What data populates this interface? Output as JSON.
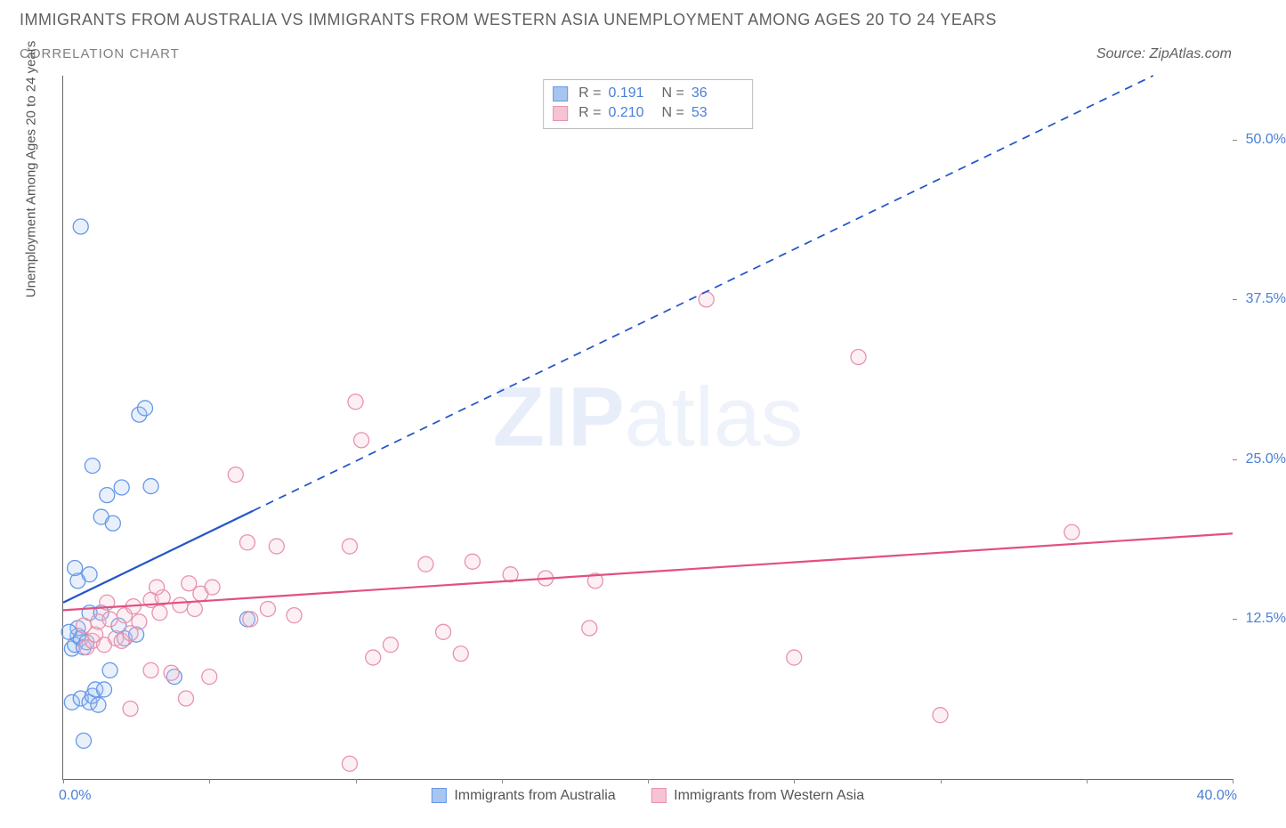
{
  "title": "IMMIGRANTS FROM AUSTRALIA VS IMMIGRANTS FROM WESTERN ASIA UNEMPLOYMENT AMONG AGES 20 TO 24 YEARS",
  "subtitle": "CORRELATION CHART",
  "source": "Source: ZipAtlas.com",
  "watermark_bold": "ZIP",
  "watermark_thin": "atlas",
  "ylabel": "Unemployment Among Ages 20 to 24 years",
  "chart": {
    "type": "scatter",
    "xlim": [
      0,
      40
    ],
    "ylim": [
      0,
      55
    ],
    "xtick_positions": [
      0,
      5,
      10,
      15,
      20,
      25,
      30,
      35,
      40
    ],
    "xtick_labels": {
      "0": "0.0%",
      "40": "40.0%"
    },
    "ytick_positions": [
      12.5,
      25.0,
      37.5,
      50.0
    ],
    "ytick_labels": [
      "12.5%",
      "25.0%",
      "37.5%",
      "50.0%"
    ],
    "grid": false,
    "background_color": "#ffffff",
    "marker_radius": 8.5,
    "series": [
      {
        "name": "Immigrants from Australia",
        "stroke": "#6699e8",
        "fill": "#a8c5ef",
        "trend_color": "#2456c9",
        "trend_width": 2.2,
        "trend_solid_xmax": 6.5,
        "trend_line": {
          "x1": 0,
          "y1": 13.8,
          "x2": 40,
          "y2": 58.0
        },
        "stats": {
          "R": "0.191",
          "N": "36"
        },
        "points": [
          [
            0.3,
            10.2
          ],
          [
            0.4,
            10.5
          ],
          [
            0.5,
            11.2
          ],
          [
            0.5,
            11.8
          ],
          [
            0.6,
            11.0
          ],
          [
            0.7,
            10.3
          ],
          [
            0.8,
            10.7
          ],
          [
            0.3,
            6.0
          ],
          [
            0.6,
            6.3
          ],
          [
            0.9,
            6.0
          ],
          [
            1.0,
            6.5
          ],
          [
            1.2,
            5.8
          ],
          [
            1.1,
            7.0
          ],
          [
            1.4,
            7.0
          ],
          [
            0.7,
            3.0
          ],
          [
            0.5,
            15.5
          ],
          [
            0.4,
            16.5
          ],
          [
            0.9,
            16.0
          ],
          [
            1.3,
            20.5
          ],
          [
            1.7,
            20.0
          ],
          [
            1.5,
            22.2
          ],
          [
            2.0,
            22.8
          ],
          [
            3.0,
            22.9
          ],
          [
            1.0,
            24.5
          ],
          [
            2.6,
            28.5
          ],
          [
            2.8,
            29.0
          ],
          [
            0.6,
            43.2
          ],
          [
            1.6,
            8.5
          ],
          [
            3.8,
            8.0
          ],
          [
            2.1,
            11.0
          ],
          [
            2.5,
            11.3
          ],
          [
            1.9,
            12.0
          ],
          [
            6.3,
            12.5
          ],
          [
            0.2,
            11.5
          ],
          [
            0.9,
            13.0
          ],
          [
            1.3,
            13.0
          ]
        ]
      },
      {
        "name": "Immigrants from Western Asia",
        "stroke": "#e893ae",
        "fill": "#f5c3d3",
        "trend_color": "#e3507d",
        "trend_width": 2.2,
        "trend_solid_xmax": 40,
        "trend_line": {
          "x1": 0,
          "y1": 13.2,
          "x2": 40,
          "y2": 19.2
        },
        "stats": {
          "R": "0.210",
          "N": "53"
        },
        "points": [
          [
            0.8,
            10.3
          ],
          [
            1.0,
            10.8
          ],
          [
            1.4,
            10.5
          ],
          [
            1.1,
            11.3
          ],
          [
            1.8,
            11.0
          ],
          [
            2.0,
            10.8
          ],
          [
            2.3,
            11.4
          ],
          [
            0.7,
            12.0
          ],
          [
            1.2,
            12.3
          ],
          [
            1.6,
            12.5
          ],
          [
            2.1,
            12.8
          ],
          [
            2.6,
            12.3
          ],
          [
            1.5,
            13.8
          ],
          [
            2.4,
            13.5
          ],
          [
            3.0,
            14.0
          ],
          [
            3.4,
            14.2
          ],
          [
            4.0,
            13.6
          ],
          [
            3.2,
            15.0
          ],
          [
            4.3,
            15.3
          ],
          [
            4.7,
            14.5
          ],
          [
            5.1,
            15.0
          ],
          [
            4.5,
            13.3
          ],
          [
            3.0,
            8.5
          ],
          [
            3.7,
            8.3
          ],
          [
            5.0,
            8.0
          ],
          [
            2.3,
            5.5
          ],
          [
            4.2,
            6.3
          ],
          [
            3.3,
            13.0
          ],
          [
            6.4,
            12.5
          ],
          [
            7.0,
            13.3
          ],
          [
            7.9,
            12.8
          ],
          [
            6.3,
            18.5
          ],
          [
            7.3,
            18.2
          ],
          [
            5.9,
            23.8
          ],
          [
            10.6,
            9.5
          ],
          [
            11.2,
            10.5
          ],
          [
            13.6,
            9.8
          ],
          [
            9.8,
            1.2
          ],
          [
            13.0,
            11.5
          ],
          [
            18.0,
            11.8
          ],
          [
            9.8,
            18.2
          ],
          [
            10.2,
            26.5
          ],
          [
            10.0,
            29.5
          ],
          [
            12.4,
            16.8
          ],
          [
            14.0,
            17.0
          ],
          [
            15.3,
            16.0
          ],
          [
            16.5,
            15.7
          ],
          [
            18.2,
            15.5
          ],
          [
            22.0,
            37.5
          ],
          [
            25.0,
            9.5
          ],
          [
            27.2,
            33.0
          ],
          [
            30.0,
            5.0
          ],
          [
            34.5,
            19.3
          ]
        ]
      }
    ]
  },
  "stats_label_R": "R =",
  "stats_label_N": "N ="
}
